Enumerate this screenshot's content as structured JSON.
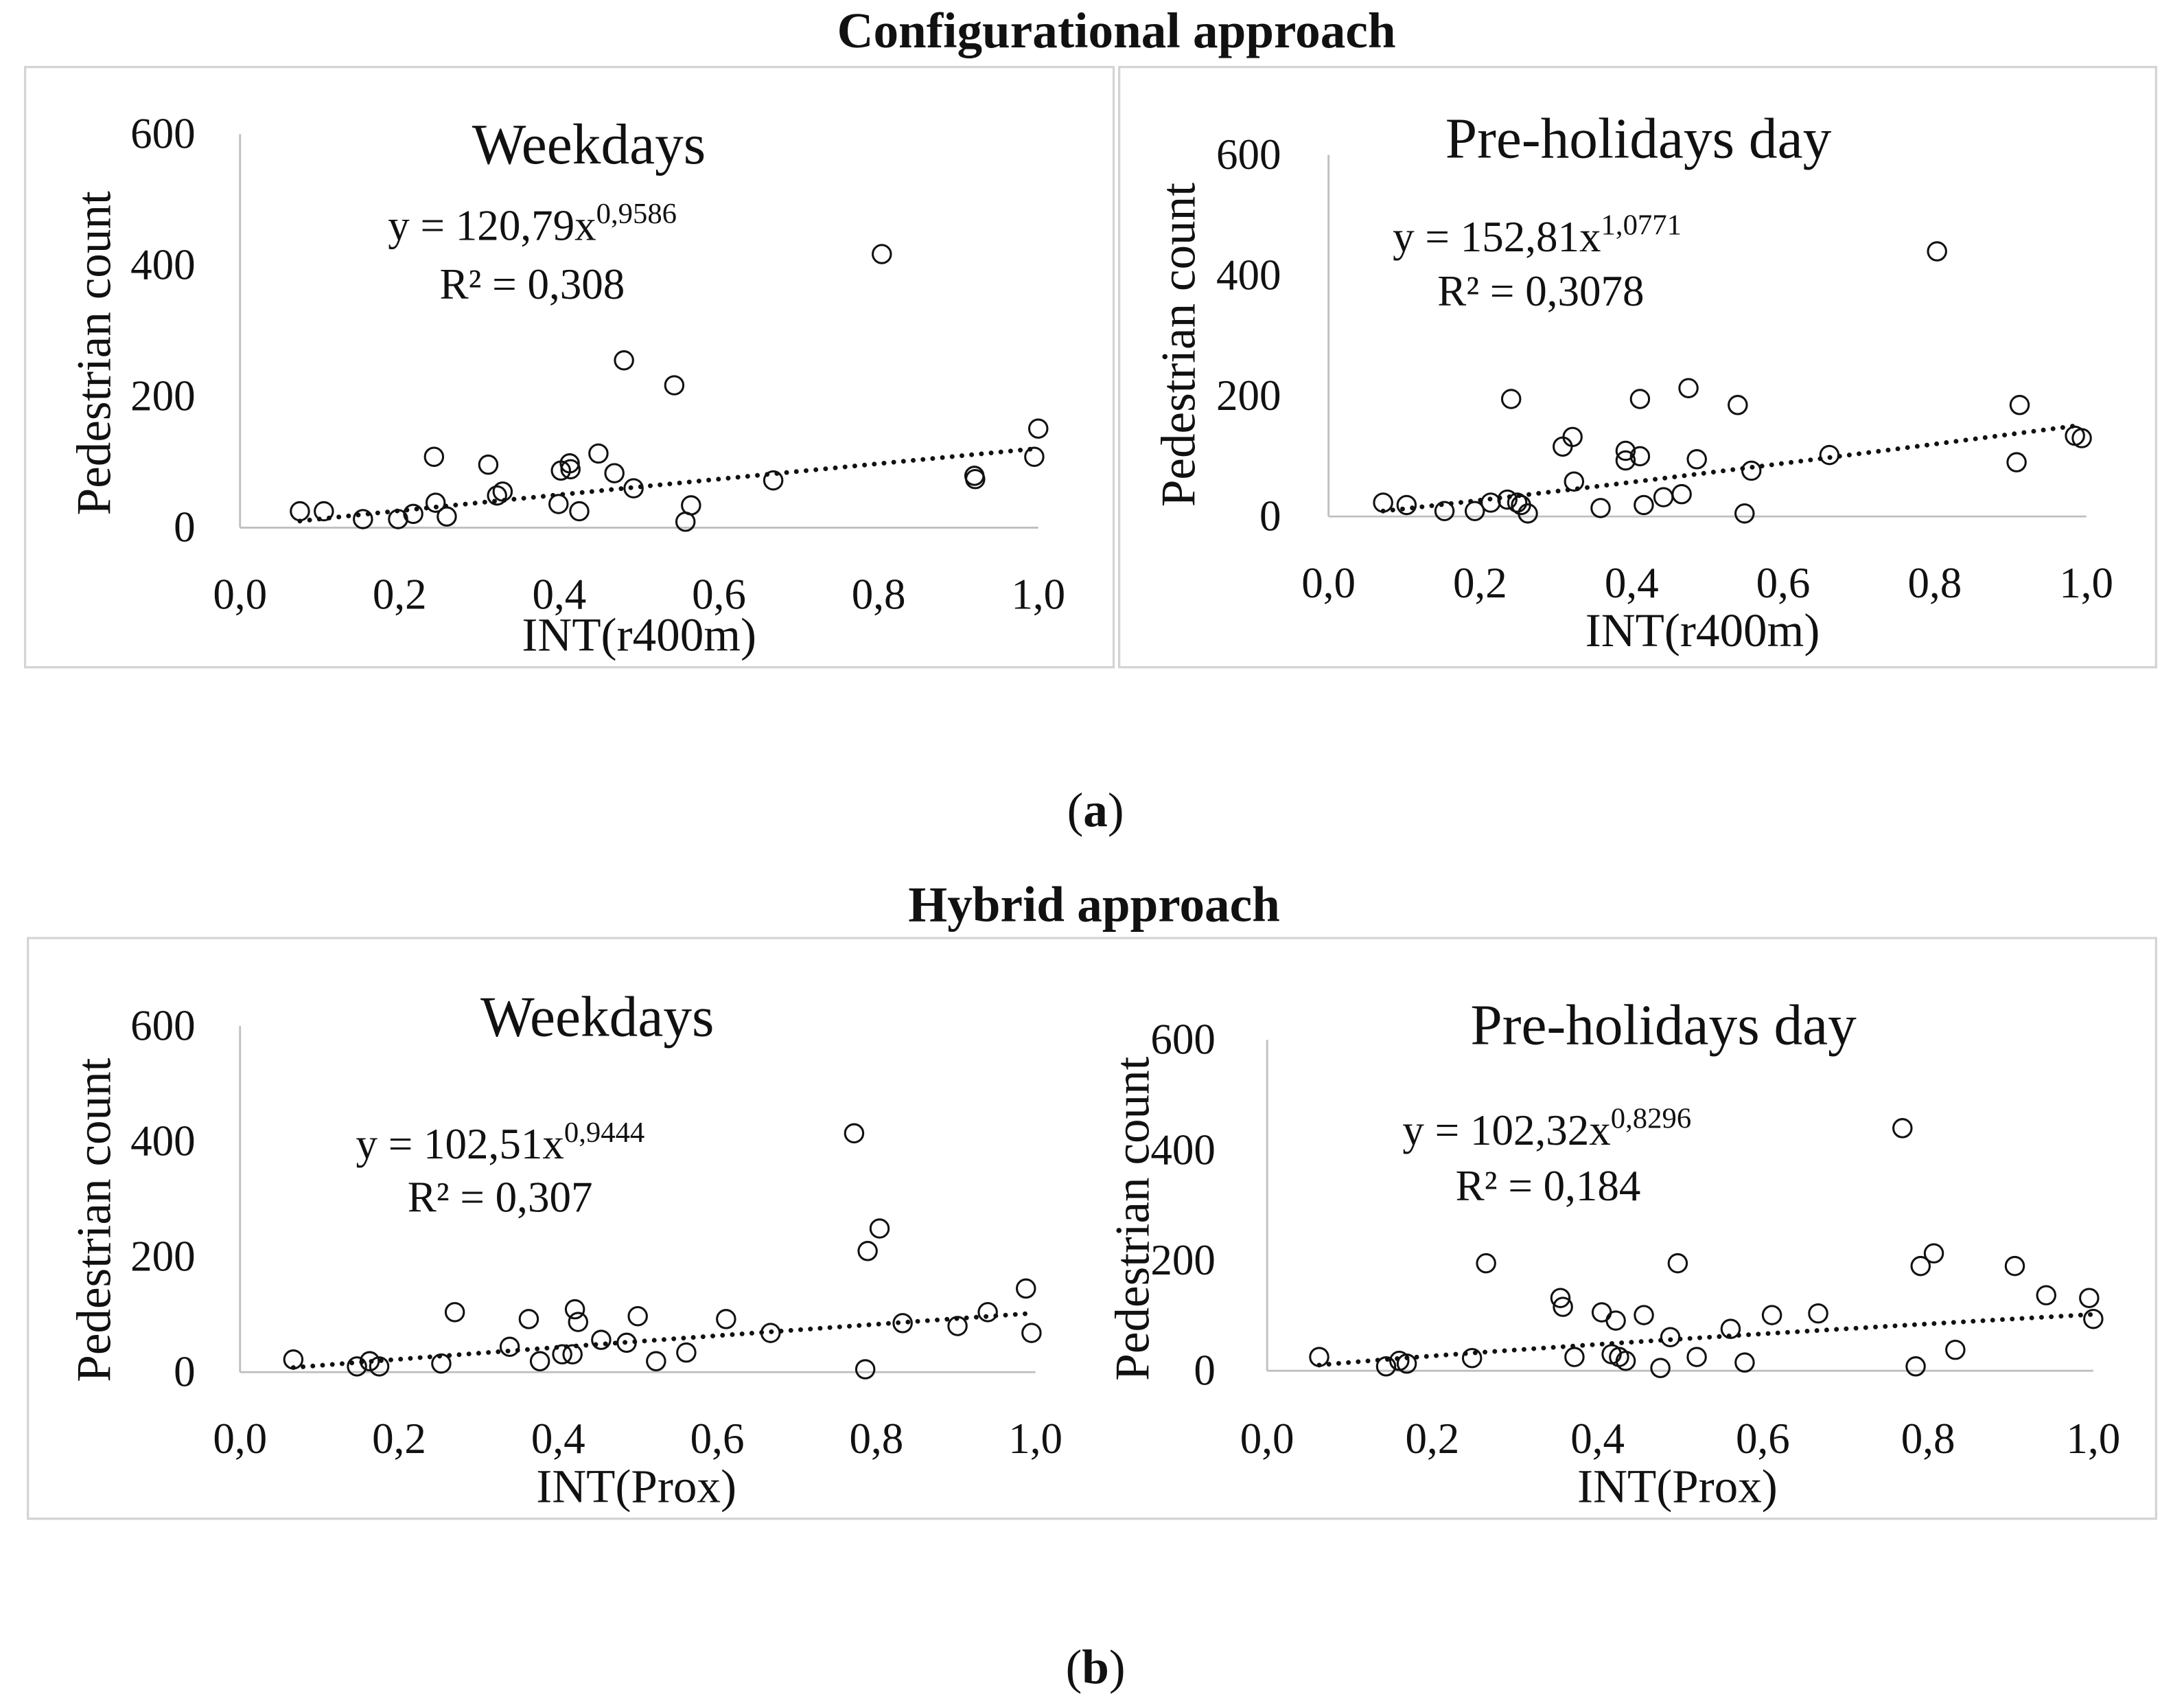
{
  "panels": [
    {
      "heading": "Configurational approach",
      "caption": {
        "open": "(",
        "label": "a",
        "close": ")"
      }
    },
    {
      "heading": "Hybrid approach",
      "caption": {
        "open": "(",
        "label": "b",
        "close": ")"
      }
    }
  ],
  "chart_data": [
    {
      "type": "scatter",
      "title": "Weekdays",
      "xlabel": "INT(r400m)",
      "ylabel": "Pedestrian count",
      "xlim": [
        0,
        1
      ],
      "ylim": [
        0,
        600
      ],
      "xticks": {
        "values": [
          0,
          0.2,
          0.4,
          0.6,
          0.8,
          1.0
        ],
        "labels": [
          "0,0",
          "0,2",
          "0,4",
          "0,6",
          "0,8",
          "1,0"
        ]
      },
      "yticks": {
        "values": [
          0,
          200,
          400,
          600
        ],
        "labels": [
          "0",
          "200",
          "400",
          "600"
        ]
      },
      "trendline": {
        "equation": "y = 120,79x",
        "exponent": "0,9586",
        "r2": "R² = 0,308",
        "coefficient": 120.79,
        "power": 0.9586
      },
      "points": [
        [
          0.075,
          25
        ],
        [
          0.105,
          25
        ],
        [
          0.154,
          13
        ],
        [
          0.198,
          13
        ],
        [
          0.217,
          21
        ],
        [
          0.243,
          108
        ],
        [
          0.245,
          38
        ],
        [
          0.259,
          17
        ],
        [
          0.311,
          96
        ],
        [
          0.322,
          49
        ],
        [
          0.329,
          55
        ],
        [
          0.399,
          36
        ],
        [
          0.402,
          87
        ],
        [
          0.413,
          98
        ],
        [
          0.414,
          89
        ],
        [
          0.425,
          25
        ],
        [
          0.449,
          113
        ],
        [
          0.469,
          83
        ],
        [
          0.481,
          255
        ],
        [
          0.493,
          60
        ],
        [
          0.544,
          217
        ],
        [
          0.558,
          9
        ],
        [
          0.565,
          34
        ],
        [
          0.668,
          72
        ],
        [
          0.804,
          417
        ],
        [
          0.92,
          79
        ],
        [
          0.921,
          74
        ],
        [
          0.995,
          108
        ],
        [
          1.0,
          151
        ]
      ]
    },
    {
      "type": "scatter",
      "title": "Pre-holidays day",
      "xlabel": "INT(r400m)",
      "ylabel": "Pedestrian count",
      "xlim": [
        0,
        1
      ],
      "ylim": [
        0,
        600
      ],
      "xticks": {
        "values": [
          0,
          0.2,
          0.4,
          0.6,
          0.8,
          1.0
        ],
        "labels": [
          "0,0",
          "0,2",
          "0,4",
          "0,6",
          "0,8",
          "1,0"
        ]
      },
      "yticks": {
        "values": [
          0,
          200,
          400,
          600
        ],
        "labels": [
          "0",
          "200",
          "400",
          "600"
        ]
      },
      "trendline": {
        "equation": "y = 152,81x",
        "exponent": "1,0771",
        "r2": "R² = 0,3078",
        "coefficient": 152.81,
        "power": 1.0771
      },
      "points": [
        [
          0.072,
          23
        ],
        [
          0.103,
          19
        ],
        [
          0.153,
          9
        ],
        [
          0.193,
          9
        ],
        [
          0.214,
          23
        ],
        [
          0.236,
          28
        ],
        [
          0.241,
          195
        ],
        [
          0.249,
          23
        ],
        [
          0.254,
          19
        ],
        [
          0.263,
          5
        ],
        [
          0.309,
          116
        ],
        [
          0.322,
          132
        ],
        [
          0.324,
          58
        ],
        [
          0.359,
          14
        ],
        [
          0.392,
          109
        ],
        [
          0.392,
          93
        ],
        [
          0.411,
          100
        ],
        [
          0.411,
          195
        ],
        [
          0.416,
          19
        ],
        [
          0.442,
          32
        ],
        [
          0.466,
          37
        ],
        [
          0.475,
          213
        ],
        [
          0.486,
          95
        ],
        [
          0.54,
          185
        ],
        [
          0.549,
          5
        ],
        [
          0.558,
          76
        ],
        [
          0.661,
          102
        ],
        [
          0.803,
          440
        ],
        [
          0.908,
          90
        ],
        [
          0.912,
          185
        ],
        [
          0.985,
          134
        ],
        [
          0.994,
          130
        ]
      ]
    },
    {
      "type": "scatter",
      "title": "Weekdays",
      "xlabel": "INT(Prox)",
      "ylabel": "Pedestrian count",
      "xlim": [
        0,
        1
      ],
      "ylim": [
        0,
        600
      ],
      "xticks": {
        "values": [
          0,
          0.2,
          0.4,
          0.6,
          0.8,
          1.0
        ],
        "labels": [
          "0,0",
          "0,2",
          "0,4",
          "0,6",
          "0,8",
          "1,0"
        ]
      },
      "yticks": {
        "values": [
          0,
          200,
          400,
          600
        ],
        "labels": [
          "0",
          "200",
          "400",
          "600"
        ]
      },
      "trendline": {
        "equation": "y = 102,51x",
        "exponent": "0,9444",
        "r2": "R² = 0,307",
        "coefficient": 102.51,
        "power": 0.9444
      },
      "points": [
        [
          0.067,
          22
        ],
        [
          0.147,
          10
        ],
        [
          0.163,
          19
        ],
        [
          0.175,
          10
        ],
        [
          0.253,
          15
        ],
        [
          0.27,
          104
        ],
        [
          0.339,
          44
        ],
        [
          0.363,
          92
        ],
        [
          0.377,
          19
        ],
        [
          0.405,
          31
        ],
        [
          0.418,
          31
        ],
        [
          0.421,
          109
        ],
        [
          0.425,
          87
        ],
        [
          0.454,
          56
        ],
        [
          0.486,
          51
        ],
        [
          0.5,
          97
        ],
        [
          0.523,
          19
        ],
        [
          0.561,
          34
        ],
        [
          0.611,
          92
        ],
        [
          0.667,
          68
        ],
        [
          0.772,
          414
        ],
        [
          0.786,
          5
        ],
        [
          0.789,
          210
        ],
        [
          0.804,
          249
        ],
        [
          0.833,
          85
        ],
        [
          0.902,
          80
        ],
        [
          0.94,
          104
        ],
        [
          0.988,
          145
        ],
        [
          0.995,
          68
        ]
      ]
    },
    {
      "type": "scatter",
      "title": "Pre-holidays day",
      "xlabel": "INT(Prox)",
      "ylabel": "Pedestrian count",
      "xlim": [
        0,
        1
      ],
      "ylim": [
        0,
        600
      ],
      "xticks": {
        "values": [
          0,
          0.2,
          0.4,
          0.6,
          0.8,
          1.0
        ],
        "labels": [
          "0,0",
          "0,2",
          "0,4",
          "0,6",
          "0,8",
          "1,0"
        ]
      },
      "yticks": {
        "values": [
          0,
          200,
          400,
          600
        ],
        "labels": [
          "0",
          "200",
          "400",
          "600"
        ]
      },
      "trendline": {
        "equation": "y = 102,32x",
        "exponent": "0,8296",
        "r2": "R² = 0,184",
        "coefficient": 102.32,
        "power": 0.8296
      },
      "points": [
        [
          0.063,
          25
        ],
        [
          0.144,
          8
        ],
        [
          0.16,
          18
        ],
        [
          0.169,
          13
        ],
        [
          0.248,
          23
        ],
        [
          0.265,
          195
        ],
        [
          0.355,
          132
        ],
        [
          0.358,
          116
        ],
        [
          0.372,
          25
        ],
        [
          0.405,
          106
        ],
        [
          0.417,
          30
        ],
        [
          0.422,
          91
        ],
        [
          0.426,
          25
        ],
        [
          0.434,
          18
        ],
        [
          0.456,
          101
        ],
        [
          0.476,
          5
        ],
        [
          0.488,
          61
        ],
        [
          0.497,
          195
        ],
        [
          0.52,
          25
        ],
        [
          0.561,
          76
        ],
        [
          0.578,
          15
        ],
        [
          0.611,
          101
        ],
        [
          0.667,
          104
        ],
        [
          0.769,
          440
        ],
        [
          0.785,
          8
        ],
        [
          0.791,
          190
        ],
        [
          0.807,
          213
        ],
        [
          0.833,
          38
        ],
        [
          0.905,
          190
        ],
        [
          0.943,
          137
        ],
        [
          0.995,
          132
        ],
        [
          1.0,
          94
        ]
      ]
    }
  ]
}
